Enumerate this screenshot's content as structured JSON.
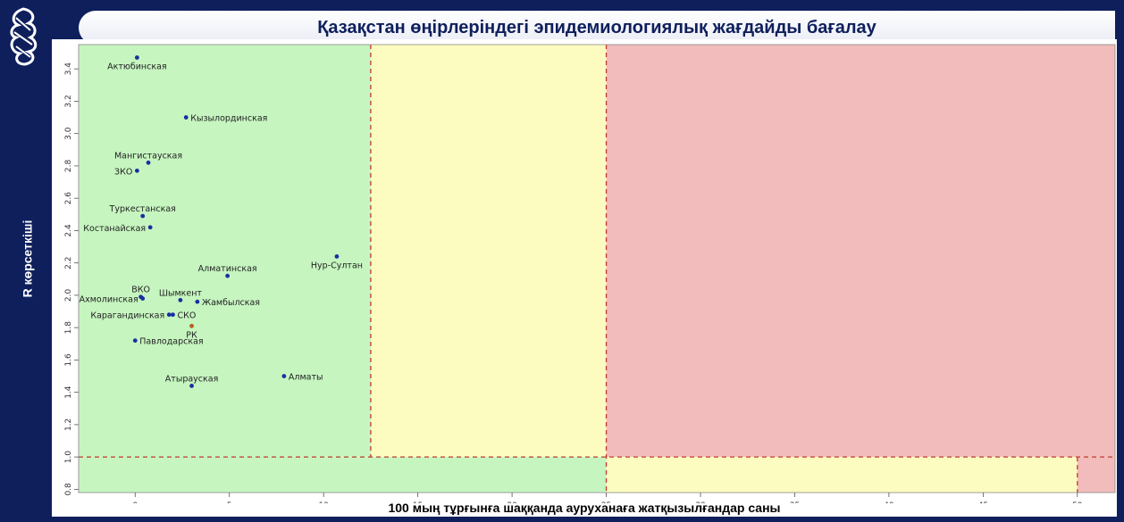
{
  "slide": {
    "title": "Қазақстан өңірлеріндегі эпидемиологиялық жағдайды бағалау"
  },
  "chart_data": {
    "type": "scatter",
    "xlabel": "100 мың тұрғынға шаққанда ауруханаға жатқызылғандар саны",
    "ylabel": "R көрсеткіші",
    "xlim": [
      -3,
      52
    ],
    "ylim": [
      0.78,
      3.55
    ],
    "x_ticks": [
      0,
      5,
      10,
      15,
      20,
      25,
      30,
      35,
      40,
      45,
      50
    ],
    "y_ticks": [
      0.8,
      1.0,
      1.2,
      1.4,
      1.6,
      1.8,
      2.0,
      2.2,
      2.4,
      2.6,
      2.8,
      3.0,
      3.2,
      3.4
    ],
    "zones": [
      {
        "name": "green",
        "color": "#c6f5c0"
      },
      {
        "name": "yellow",
        "color": "#fcfcc0"
      },
      {
        "name": "red",
        "color": "#f2bcbc"
      }
    ],
    "reference_lines": {
      "r_threshold": 1.0,
      "x_dividers": [
        12.5,
        25,
        50
      ],
      "line_color": "#c0392b"
    },
    "points": [
      {
        "label": "Актюбинская",
        "x": 0.1,
        "y": 3.47,
        "label_pos": "below"
      },
      {
        "label": "Кызылординская",
        "x": 2.7,
        "y": 3.1,
        "label_pos": "right"
      },
      {
        "label": "Мангистауская",
        "x": 0.7,
        "y": 2.82,
        "label_pos": "above"
      },
      {
        "label": "ЗКО",
        "x": 0.1,
        "y": 2.77,
        "label_pos": "left"
      },
      {
        "label": "Туркестанская",
        "x": 0.4,
        "y": 2.49,
        "label_pos": "above"
      },
      {
        "label": "Костанайская",
        "x": 0.8,
        "y": 2.42,
        "label_pos": "left"
      },
      {
        "label": "Нур-Султан",
        "x": 10.7,
        "y": 2.24,
        "label_pos": "below"
      },
      {
        "label": "Алматинская",
        "x": 4.9,
        "y": 2.12,
        "label_pos": "above"
      },
      {
        "label": "ВКО",
        "x": 0.3,
        "y": 1.99,
        "label_pos": "above"
      },
      {
        "label": "Ахмолинская",
        "x": 0.4,
        "y": 1.98,
        "label_pos": "left"
      },
      {
        "label": "Шымкент",
        "x": 2.4,
        "y": 1.97,
        "label_pos": "above"
      },
      {
        "label": "Жамбылская",
        "x": 3.3,
        "y": 1.96,
        "label_pos": "right"
      },
      {
        "label": "Карагандинская",
        "x": 1.8,
        "y": 1.88,
        "label_pos": "left"
      },
      {
        "label": "СКО",
        "x": 2.0,
        "y": 1.88,
        "label_pos": "right"
      },
      {
        "label": "РК",
        "x": 3.0,
        "y": 1.81,
        "label_pos": "below",
        "color": "#b85c1c"
      },
      {
        "label": "Павлодарская",
        "x": 0.0,
        "y": 1.72,
        "label_pos": "right"
      },
      {
        "label": "Алматы",
        "x": 7.9,
        "y": 1.5,
        "label_pos": "right"
      },
      {
        "label": "Атырауская",
        "x": 3.0,
        "y": 1.44,
        "label_pos": "above"
      }
    ]
  }
}
